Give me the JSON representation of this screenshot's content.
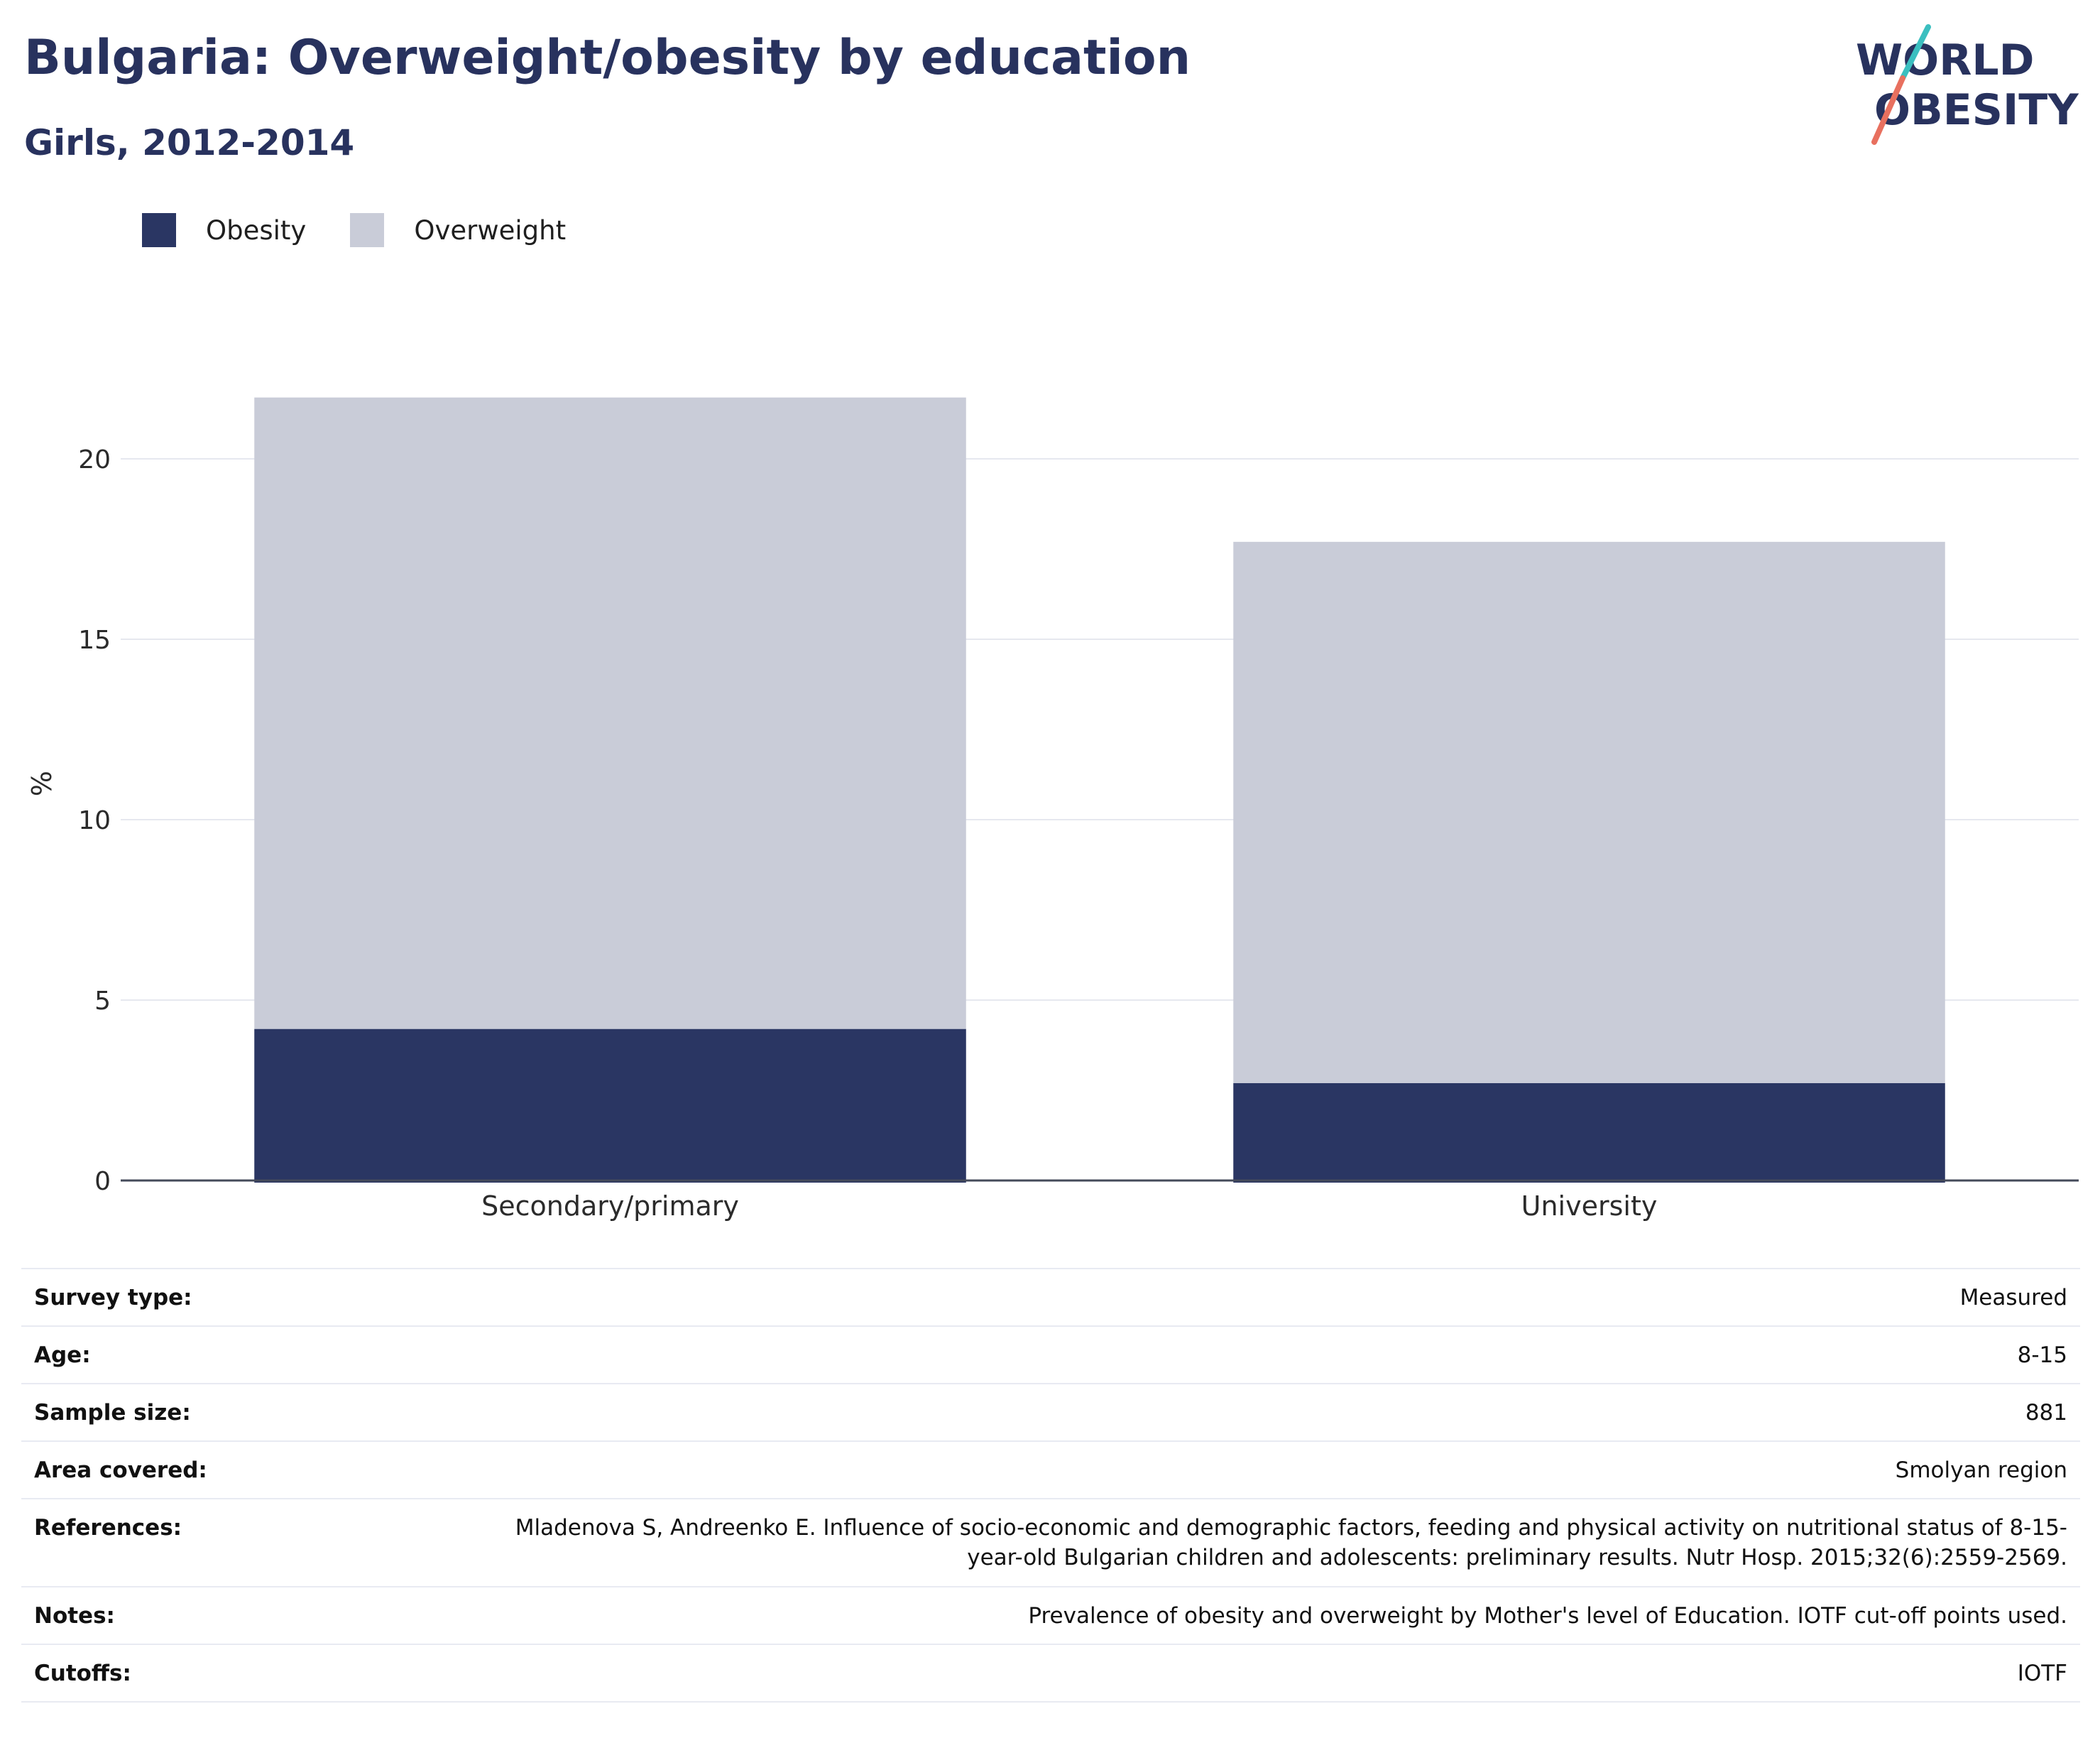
{
  "header": {
    "title": "Bulgaria: Overweight/obesity by education",
    "subtitle": "Girls, 2012-2014"
  },
  "logo": {
    "line1": "WORLD",
    "line2": "OBESITY",
    "colors": {
      "text": "#28325e",
      "slash_top": "#3bbfc0",
      "slash_bottom": "#e8705f"
    }
  },
  "legend": [
    {
      "label": "Obesity",
      "color": "#2a3663"
    },
    {
      "label": "Overweight",
      "color": "#c9ccd8"
    }
  ],
  "chart_data": {
    "type": "bar",
    "stacked": true,
    "categories": [
      "Secondary/primary",
      "University"
    ],
    "series": [
      {
        "name": "Obesity",
        "values": [
          4.2,
          2.7
        ],
        "color": "#2a3663"
      },
      {
        "name": "Overweight",
        "values": [
          17.5,
          15.0
        ],
        "color": "#c9ccd8"
      }
    ],
    "ylabel": "%",
    "ylim": [
      0,
      21.7
    ],
    "yticks": [
      0,
      5,
      10,
      15,
      20
    ],
    "grid": true,
    "legend_position": "top-left"
  },
  "meta": [
    {
      "label": "Survey type:",
      "value": "Measured"
    },
    {
      "label": "Age:",
      "value": "8-15"
    },
    {
      "label": "Sample size:",
      "value": "881"
    },
    {
      "label": "Area covered:",
      "value": "Smolyan region"
    },
    {
      "label": "References:",
      "value": "Mladenova S, Andreenko E. Influence of socio-economic and demographic factors, feeding and physical activity on nutritional status of 8-15-year-old Bulgarian children and adolescents: preliminary results. Nutr Hosp. 2015;32(6):2559-2569."
    },
    {
      "label": "Notes:",
      "value": "Prevalence of obesity and overweight by Mother's level of Education. IOTF cut-off points used."
    },
    {
      "label": "Cutoffs:",
      "value": "IOTF"
    }
  ]
}
